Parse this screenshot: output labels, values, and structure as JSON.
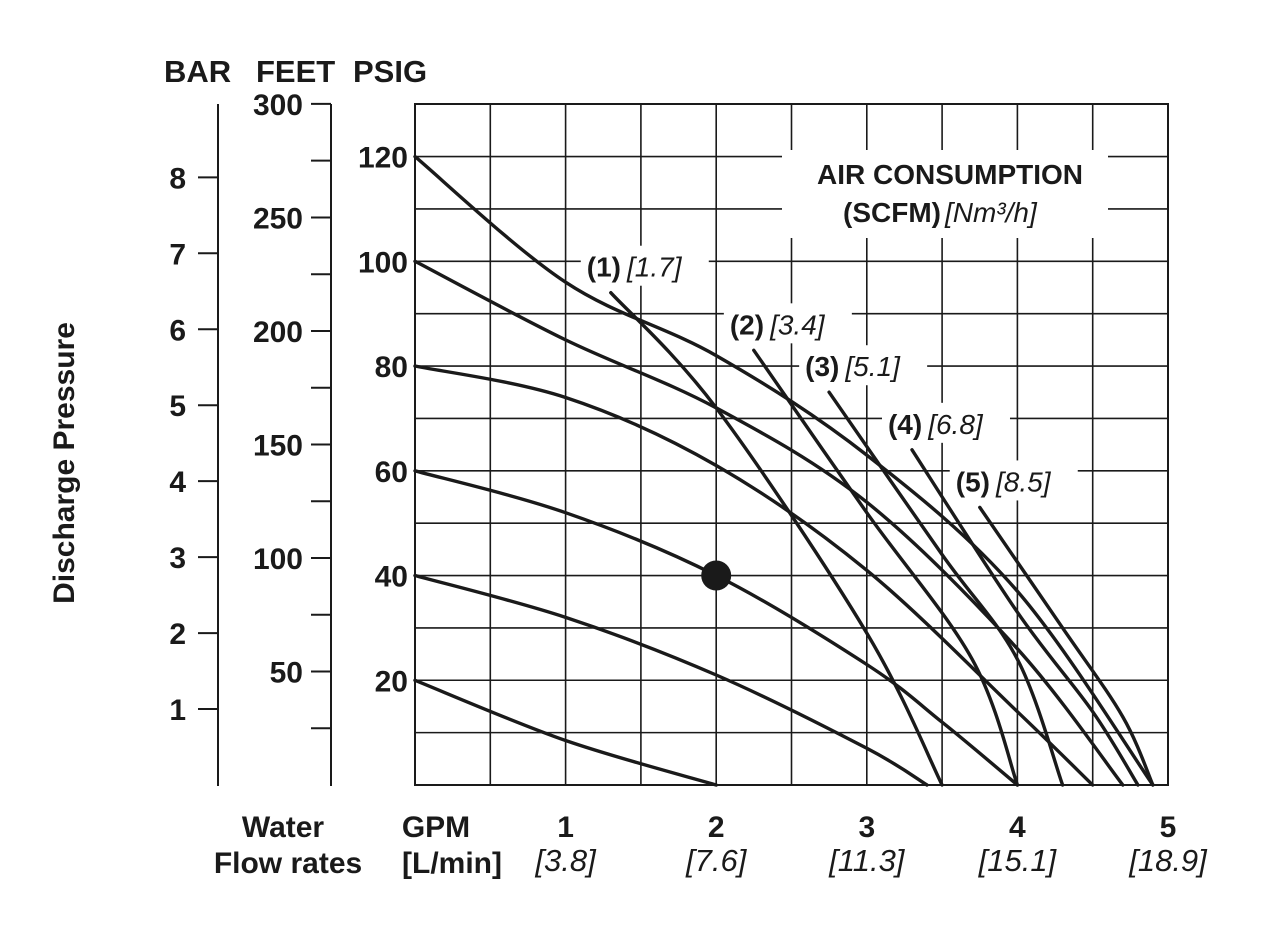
{
  "chart_data": {
    "type": "line",
    "ylabel": "Discharge Pressure",
    "axis_headers": {
      "bar": "BAR",
      "feet": "FEET",
      "psig": "PSIG"
    },
    "bar_ticks": [
      "1",
      "2",
      "3",
      "4",
      "5",
      "6",
      "7",
      "8"
    ],
    "feet_ticks": [
      "50",
      "100",
      "150",
      "200",
      "250",
      "300"
    ],
    "psig_ticks": [
      "20",
      "40",
      "60",
      "80",
      "100",
      "120"
    ],
    "xlabel_line1": "Water",
    "xlabel_line2": "Flow rates",
    "x_unit_line1": "GPM",
    "x_unit_line2": "[L/min]",
    "x_ticks": [
      {
        "gpm": "1",
        "lpm": "[3.8]"
      },
      {
        "gpm": "2",
        "lpm": "[7.6]"
      },
      {
        "gpm": "3",
        "lpm": "[11.3]"
      },
      {
        "gpm": "4",
        "lpm": "[15.1]"
      },
      {
        "gpm": "5",
        "lpm": "[18.9]"
      }
    ],
    "xlim": [
      0,
      5
    ],
    "ylim": [
      0,
      130
    ],
    "grid": true,
    "legend_title_line1": "AIR CONSUMPTION",
    "legend_title_line2": "(SCFM)",
    "legend_title_unit": "[Nm³/h]",
    "performance_curves": [
      {
        "air_pressure_psig": 20,
        "points": [
          [
            0,
            20
          ],
          [
            1,
            8.5
          ],
          [
            2,
            0
          ]
        ]
      },
      {
        "air_pressure_psig": 40,
        "points": [
          [
            0,
            40
          ],
          [
            1,
            32
          ],
          [
            2,
            21
          ],
          [
            3,
            7
          ],
          [
            3.4,
            0
          ]
        ]
      },
      {
        "air_pressure_psig": 60,
        "points": [
          [
            0,
            60
          ],
          [
            1,
            52
          ],
          [
            2,
            40
          ],
          [
            3,
            23
          ],
          [
            3.5,
            12
          ],
          [
            4,
            0
          ]
        ]
      },
      {
        "air_pressure_psig": 80,
        "points": [
          [
            0,
            80
          ],
          [
            1,
            74
          ],
          [
            2,
            61
          ],
          [
            3,
            41
          ],
          [
            4,
            14
          ],
          [
            4.5,
            0
          ]
        ]
      },
      {
        "air_pressure_psig": 100,
        "points": [
          [
            0,
            100
          ],
          [
            1,
            85
          ],
          [
            2,
            72
          ],
          [
            3,
            54
          ],
          [
            4,
            26
          ],
          [
            4.7,
            0
          ]
        ]
      },
      {
        "air_pressure_psig": 120,
        "points": [
          [
            0,
            120
          ],
          [
            1,
            96
          ],
          [
            2,
            82
          ],
          [
            3,
            63
          ],
          [
            4,
            37
          ],
          [
            4.9,
            0
          ]
        ]
      }
    ],
    "air_consumption_curves": [
      {
        "label": "(1)",
        "value": "[1.7]",
        "points": [
          [
            1.3,
            94
          ],
          [
            2,
            72
          ],
          [
            3,
            29
          ],
          [
            3.5,
            0
          ]
        ]
      },
      {
        "label": "(2)",
        "value": "[3.4]",
        "points": [
          [
            2.25,
            83
          ],
          [
            3,
            52
          ],
          [
            3.7,
            24
          ],
          [
            4,
            0
          ]
        ]
      },
      {
        "label": "(3)",
        "value": "[5.1]",
        "points": [
          [
            2.75,
            75
          ],
          [
            3.5,
            44
          ],
          [
            4,
            24
          ],
          [
            4.3,
            0
          ]
        ]
      },
      {
        "label": "(4)",
        "value": "[6.8]",
        "points": [
          [
            3.3,
            64
          ],
          [
            4,
            33
          ],
          [
            4.5,
            14
          ],
          [
            4.8,
            0
          ]
        ]
      },
      {
        "label": "(5)",
        "value": "[8.5]",
        "points": [
          [
            3.75,
            53
          ],
          [
            4.3,
            30
          ],
          [
            4.7,
            13
          ],
          [
            4.9,
            0
          ]
        ]
      }
    ],
    "marker_point": {
      "x": 2,
      "y": 40
    }
  }
}
